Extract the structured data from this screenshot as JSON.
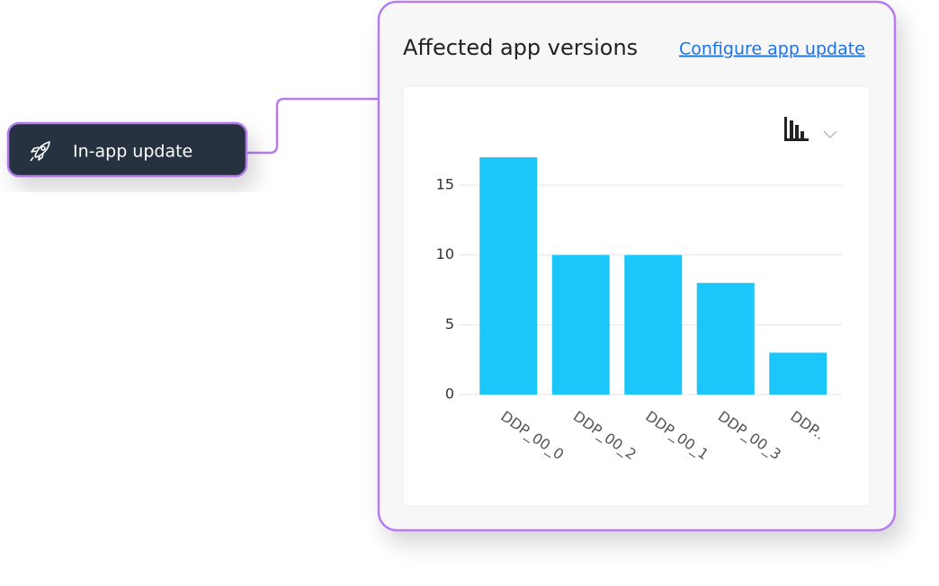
{
  "tag": {
    "label": "In-app update"
  },
  "card": {
    "title": "Affected app versions",
    "link": "Configure app update"
  },
  "chart_data": {
    "type": "bar",
    "categories": [
      "DDP_00_0",
      "DDP_00_2",
      "DDP_00_1",
      "DDP_00_3",
      "DDP.."
    ],
    "values": [
      17,
      10,
      10,
      8,
      3
    ],
    "color": "#1bc6fb",
    "ylim": [
      0,
      17
    ],
    "yticks": [
      0,
      5,
      10,
      15
    ],
    "grid": true
  }
}
